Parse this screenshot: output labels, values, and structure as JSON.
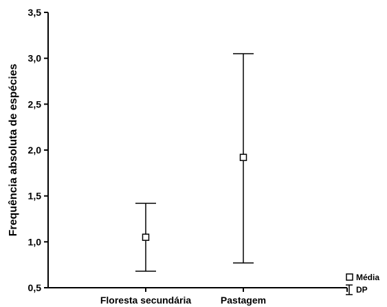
{
  "chart_data": {
    "type": "scatter",
    "title": "",
    "xlabel": "",
    "ylabel": "Frequência absoluta de espécies",
    "categories": [
      "Floresta secundária",
      "Pastagem"
    ],
    "ylim": [
      0.5,
      3.5
    ],
    "yticks": [
      0.5,
      1.0,
      1.5,
      2.0,
      2.5,
      3.0,
      3.5
    ],
    "ytick_labels": [
      "0,5",
      "1,0",
      "1,5",
      "2,0",
      "2,5",
      "3,0",
      "3,5"
    ],
    "series": [
      {
        "name": "Média",
        "values": [
          1.05,
          1.92
        ],
        "error_low": [
          0.68,
          0.77
        ],
        "error_high": [
          1.42,
          3.05
        ]
      }
    ],
    "legend": {
      "placement": "bottom-right",
      "entries": [
        {
          "label": "Média",
          "symbol": "square"
        },
        {
          "label": "DP",
          "symbol": "error-bar"
        }
      ]
    },
    "grid": false,
    "colors": {
      "axis": "#000000",
      "marker_fill": "#ffffff",
      "marker_stroke": "#000000"
    }
  }
}
